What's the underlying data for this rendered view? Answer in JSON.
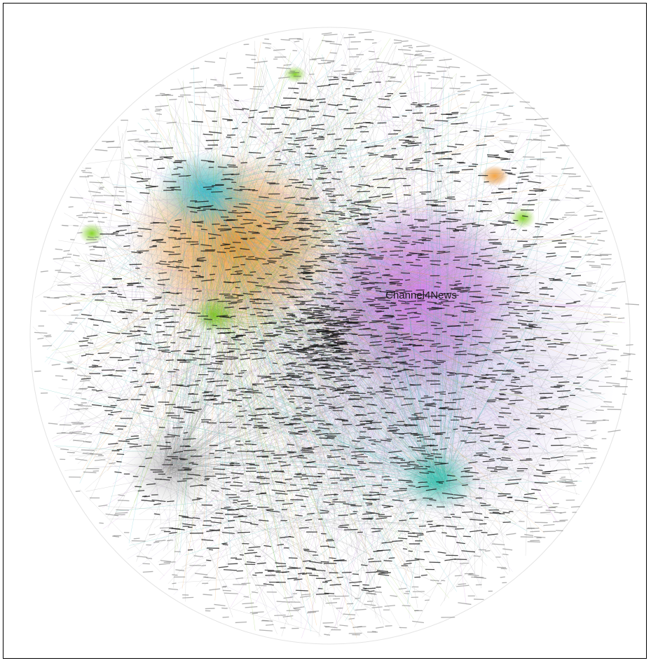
{
  "nodes": [
    {
      "label": "Channel4News"
    }
  ]
}
